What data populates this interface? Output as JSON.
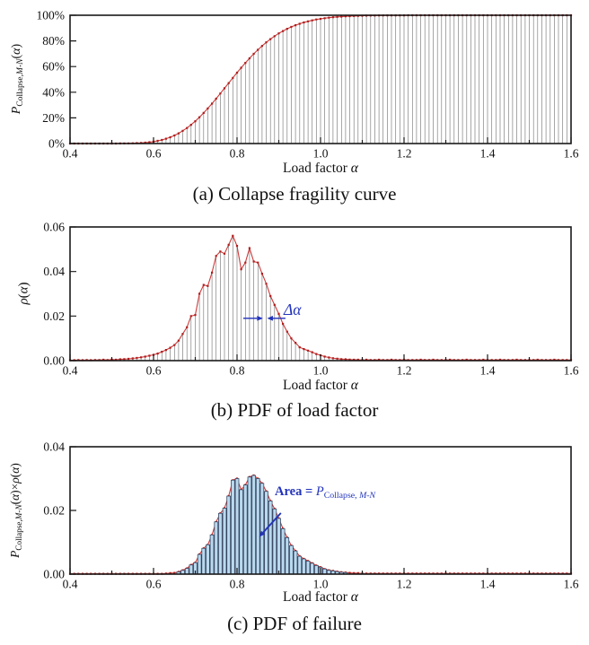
{
  "page": {
    "background": "#ffffff"
  },
  "colors": {
    "red_line": "#cc3b3b",
    "red_marker": "#b01e1e",
    "stem": "#787878",
    "axis": "#1a1a1a",
    "text": "#111111",
    "blue": "#2233bb",
    "bar_fill": "#b9d9ee",
    "bar_stroke": "#33415e"
  },
  "chart_data": [
    {
      "id": "a",
      "type": "stem",
      "caption": "(a) Collapse fragility curve",
      "xlabel_parts": [
        {
          "t": "Load factor "
        },
        {
          "t": "α",
          "i": 1
        }
      ],
      "ylabel_parts": [
        {
          "t": "P",
          "i": 1
        },
        {
          "t": "Collapse,",
          "sub": 1
        },
        {
          "t": "M-N",
          "sub": 1,
          "i": 1
        },
        {
          "t": "("
        },
        {
          "t": "α",
          "i": 1
        },
        {
          "t": ")"
        }
      ],
      "xlim": [
        0.4,
        1.6
      ],
      "ylim": [
        0,
        1
      ],
      "x_ticks": [
        0.4,
        0.6,
        0.8,
        1.0,
        1.2,
        1.4,
        1.6
      ],
      "x_tick_labels": [
        "0.4",
        "0.6",
        "0.8",
        "1.0",
        "1.2",
        "1.4",
        "1.6"
      ],
      "x_minor_ticks": [
        0.5,
        0.7,
        0.9,
        1.1,
        1.3,
        1.5
      ],
      "y_ticks": [
        {
          "v": 0,
          "label": "0%"
        },
        {
          "v": 0.2,
          "label": "20%"
        },
        {
          "v": 0.4,
          "label": "40%"
        },
        {
          "v": 0.6,
          "label": "60%"
        },
        {
          "v": 0.8,
          "label": "80%"
        },
        {
          "v": 1,
          "label": "100%"
        }
      ],
      "x_start": 0.4,
      "dx": 0.01,
      "values": [
        0,
        0,
        0,
        0,
        0,
        0,
        0.0001,
        0.0001,
        0.0001,
        0.0001,
        0.0001,
        0.0003,
        0.0005,
        0.0008,
        0.0013,
        0.0021,
        0.0032,
        0.0049,
        0.0073,
        0.0106,
        0.015,
        0.0209,
        0.0282,
        0.0376,
        0.0491,
        0.0632,
        0.0796,
        0.099,
        0.1212,
        0.1464,
        0.1744,
        0.2052,
        0.2383,
        0.2737,
        0.3111,
        0.3499,
        0.3901,
        0.4306,
        0.4715,
        0.5121,
        0.5521,
        0.5909,
        0.6288,
        0.6646,
        0.699,
        0.731,
        0.761,
        0.7887,
        0.8142,
        0.8372,
        0.8584,
        0.8772,
        0.8942,
        0.9091,
        0.9224,
        0.9339,
        0.944,
        0.9527,
        0.9603,
        0.9668,
        0.9723,
        0.977,
        0.981,
        0.9843,
        0.9871,
        0.9894,
        0.9914,
        0.993,
        0.9943,
        0.9954,
        0.9963,
        0.997,
        0.9976,
        0.9981,
        0.9984,
        0.9988,
        0.999,
        0.9992,
        0.9994,
        0.9995,
        0.9996,
        0.9997,
        0.9998,
        0.9998,
        0.9999,
        0.9999,
        1,
        1,
        1,
        1,
        1,
        1,
        1,
        1,
        1,
        1,
        1,
        1,
        1,
        1,
        1,
        1,
        1,
        1,
        1,
        1,
        1,
        1,
        1,
        1,
        1,
        1,
        1,
        1,
        1,
        1,
        1,
        1,
        1,
        1,
        1
      ],
      "annotations": []
    },
    {
      "id": "b",
      "type": "stem",
      "caption": "(b) PDF of load factor",
      "xlabel_parts": [
        {
          "t": "Load factor "
        },
        {
          "t": "α",
          "i": 1
        }
      ],
      "ylabel_parts": [
        {
          "t": "ρ",
          "i": 1
        },
        {
          "t": "("
        },
        {
          "t": "α",
          "i": 1
        },
        {
          "t": ")"
        }
      ],
      "xlim": [
        0.4,
        1.6
      ],
      "ylim": [
        0,
        0.06
      ],
      "x_ticks": [
        0.4,
        0.6,
        0.8,
        1.0,
        1.2,
        1.4,
        1.6
      ],
      "x_tick_labels": [
        "0.4",
        "0.6",
        "0.8",
        "1.0",
        "1.2",
        "1.4",
        "1.6"
      ],
      "x_minor_ticks": [
        0.5,
        0.7,
        0.9,
        1.1,
        1.3,
        1.5
      ],
      "y_ticks": [
        {
          "v": 0,
          "label": "0.00"
        },
        {
          "v": 0.02,
          "label": "0.02"
        },
        {
          "v": 0.04,
          "label": "0.04"
        },
        {
          "v": 0.06,
          "label": "0.06"
        }
      ],
      "x_start": 0.4,
      "dx": 0.01,
      "values": [
        0.0002,
        0.0002,
        0.0003,
        0.0002,
        0.0003,
        0.0002,
        0.0003,
        0.0003,
        0.0004,
        0.0003,
        0.0005,
        0.0004,
        0.0006,
        0.0007,
        0.0008,
        0.001,
        0.0012,
        0.0015,
        0.0018,
        0.0022,
        0.0026,
        0.0032,
        0.004,
        0.0048,
        0.0058,
        0.007,
        0.009,
        0.012,
        0.015,
        0.02,
        0.0205,
        0.03,
        0.034,
        0.0335,
        0.0395,
        0.047,
        0.049,
        0.048,
        0.052,
        0.056,
        0.0515,
        0.041,
        0.044,
        0.0505,
        0.0445,
        0.044,
        0.039,
        0.0345,
        0.029,
        0.025,
        0.021,
        0.0165,
        0.013,
        0.01,
        0.008,
        0.006,
        0.0052,
        0.0045,
        0.0038,
        0.003,
        0.0024,
        0.0018,
        0.0014,
        0.0011,
        0.0009,
        0.0007,
        0.0006,
        0.0005,
        0.0004,
        0.0004,
        0.0003,
        0.0004,
        0.0003,
        0.0003,
        0.0004,
        0.0003,
        0.0003,
        0.0004,
        0.0003,
        0.0003,
        0.0004,
        0.0003,
        0.0003,
        0.0003,
        0.0004,
        0.0003,
        0.0003,
        0.0004,
        0.0003,
        0.0003,
        0.0003,
        0.0004,
        0.0003,
        0.0003,
        0.0003,
        0.0004,
        0.0003,
        0.0003,
        0.0003,
        0.0004,
        0.0003,
        0.0003,
        0.0003,
        0.0004,
        0.0003,
        0.0003,
        0.0003,
        0.0004,
        0.0003,
        0.0003,
        0.0003,
        0.0003,
        0.0004,
        0.0003,
        0.0003,
        0.0003,
        0.0004,
        0.0003,
        0.0003,
        0.0003,
        0.0003
      ],
      "annotations": [
        {
          "kind": "arrow",
          "x1": 0.815,
          "y1": 0.019,
          "x2": 0.862,
          "y2": 0.019,
          "w": 1.4
        },
        {
          "kind": "arrow",
          "x1": 0.916,
          "y1": 0.019,
          "x2": 0.872,
          "y2": 0.019,
          "w": 1.4
        }
      ],
      "annotation_label_parts": [
        {
          "t": "Δα",
          "i": 1
        }
      ]
    },
    {
      "id": "c",
      "type": "bar",
      "caption": "(c) PDF of failure",
      "xlabel_parts": [
        {
          "t": "Load factor "
        },
        {
          "t": "α",
          "i": 1
        }
      ],
      "ylabel_parts": [
        {
          "t": "P",
          "i": 1
        },
        {
          "t": "Collapse,",
          "sub": 1
        },
        {
          "t": "M-N",
          "sub": 1,
          "i": 1
        },
        {
          "t": "("
        },
        {
          "t": "α",
          "i": 1
        },
        {
          "t": ")×"
        },
        {
          "t": "ρ",
          "i": 1
        },
        {
          "t": "("
        },
        {
          "t": "α",
          "i": 1
        },
        {
          "t": ")"
        }
      ],
      "xlim": [
        0.4,
        1.6
      ],
      "ylim": [
        0,
        0.04
      ],
      "x_ticks": [
        0.4,
        0.6,
        0.8,
        1.0,
        1.2,
        1.4,
        1.6
      ],
      "x_tick_labels": [
        "0.4",
        "0.6",
        "0.8",
        "1.0",
        "1.2",
        "1.4",
        "1.6"
      ],
      "x_minor_ticks": [
        0.5,
        0.7,
        0.9,
        1.1,
        1.3,
        1.5
      ],
      "y_ticks": [
        {
          "v": 0,
          "label": "0.00"
        },
        {
          "v": 0.02,
          "label": "0.02"
        },
        {
          "v": 0.04,
          "label": "0.04"
        }
      ],
      "x_start": 0.4,
      "dx": 0.01,
      "values": [
        0.0001,
        0.0001,
        0.0001,
        0.0001,
        0.0001,
        0.0001,
        0.0001,
        0.0001,
        0.0001,
        0.0001,
        0.0001,
        0.0001,
        0.0001,
        0.0001,
        0.0001,
        0.0001,
        0.0001,
        0.0001,
        0.0001,
        0.0001,
        0.0001,
        0.0001,
        0.0001,
        0.0002,
        0.0003,
        0.0004,
        0.0007,
        0.0012,
        0.0018,
        0.0029,
        0.0036,
        0.0062,
        0.0081,
        0.0092,
        0.0123,
        0.0164,
        0.0191,
        0.0207,
        0.0245,
        0.0295,
        0.03,
        0.0265,
        0.028,
        0.0305,
        0.031,
        0.03,
        0.0285,
        0.026,
        0.023,
        0.0205,
        0.0175,
        0.0143,
        0.0115,
        0.009,
        0.0073,
        0.0056,
        0.0048,
        0.0041,
        0.0034,
        0.0027,
        0.0022,
        0.0016,
        0.0012,
        0.001,
        0.0008,
        0.0006,
        0.0005,
        0.0004,
        0.0003,
        0.0003,
        0.0002,
        0.0002,
        0.0002,
        0.0002,
        0.0002,
        0.0002,
        0.0002,
        0.0002,
        0.0002,
        0.0002,
        0.0002,
        0.0002,
        0.0002,
        0.0002,
        0.0002,
        0.0002,
        0.0002,
        0.0002,
        0.0002,
        0.0002,
        0.0002,
        0.0002,
        0.0002,
        0.0002,
        0.0002,
        0.0002,
        0.0002,
        0.0002,
        0.0002,
        0.0002,
        0.0002,
        0.0002,
        0.0002,
        0.0002,
        0.0002,
        0.0002,
        0.0002,
        0.0002,
        0.0002,
        0.0002,
        0.0002,
        0.0002,
        0.0002,
        0.0002,
        0.0002,
        0.0002,
        0.0002,
        0.0002,
        0.0002,
        0.0002,
        0.0002
      ],
      "annotations": [
        {
          "kind": "arrow",
          "x1": 0.905,
          "y1": 0.0192,
          "x2": 0.853,
          "y2": 0.0117,
          "w": 1.9
        }
      ],
      "annotation_label_parts": [
        {
          "t": "Area = ",
          "b": 1
        },
        {
          "t": "P",
          "i": 1
        },
        {
          "t": "Collapse, ",
          "sub": 1
        },
        {
          "t": "M-N",
          "sub": 1,
          "i": 1
        }
      ]
    }
  ]
}
